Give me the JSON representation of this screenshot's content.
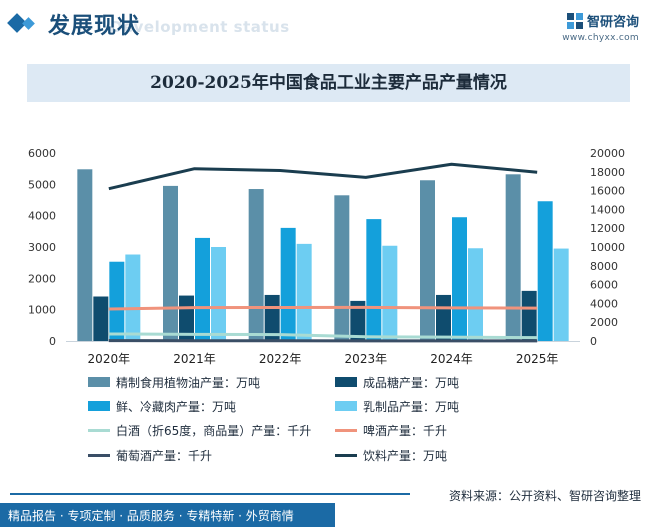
{
  "header": {
    "title": "发展现状",
    "subtitle_en": "Development status",
    "logo_name": "智研咨询",
    "logo_url": "www.chyxx.com"
  },
  "chart_data": {
    "type": "bar",
    "title": "2020-2025年中国食品工业主要产品产量情况",
    "categories": [
      "2020年",
      "2021年",
      "2022年",
      "2023年",
      "2024年",
      "2025年"
    ],
    "y_left": {
      "ylim": [
        0,
        6000
      ],
      "ticks": [
        "0",
        "1000",
        "2000",
        "3000",
        "4000",
        "5000",
        "6000"
      ]
    },
    "y_right": {
      "ylim": [
        0,
        20000
      ],
      "ticks": [
        "0",
        "2000",
        "4000",
        "6000",
        "8000",
        "10000",
        "12000",
        "14000",
        "16000",
        "18000",
        "20000"
      ]
    },
    "bar_series": [
      {
        "name": "精制食用植物油产量：万吨",
        "color": "#5b8fa8",
        "values": [
          5480,
          4950,
          4850,
          4650,
          5130,
          5320
        ]
      },
      {
        "name": "成品糖产量：万吨",
        "color": "#0f4c6e",
        "values": [
          1420,
          1450,
          1470,
          1280,
          1470,
          1600
        ]
      },
      {
        "name": "鲜、冷藏肉产量：万吨",
        "color": "#14a0db",
        "values": [
          2530,
          3290,
          3610,
          3890,
          3950,
          4460
        ]
      },
      {
        "name": "乳制品产量：万吨",
        "color": "#6dcdf2",
        "values": [
          2760,
          3000,
          3100,
          3040,
          2960,
          2950
        ]
      }
    ],
    "line_series": [
      {
        "name": "白酒（折65度，商品量）产量：千升",
        "color": "#a9dbd3",
        "axis": "right",
        "values": [
          750,
          700,
          680,
          450,
          410,
          360
        ]
      },
      {
        "name": "啤酒产量：千升",
        "color": "#f0937c",
        "axis": "right",
        "values": [
          3400,
          3550,
          3570,
          3580,
          3520,
          3500
        ]
      },
      {
        "name": "葡萄酒产量：千升",
        "color": "#3a4e66",
        "axis": "right",
        "values": [
          40,
          30,
          25,
          15,
          10,
          10
        ]
      },
      {
        "name": "饮料产量：万吨",
        "color": "#1a3d4f",
        "axis": "right",
        "values": [
          16200,
          18330,
          18140,
          17410,
          18800,
          17950
        ]
      }
    ],
    "legend_position": "bottom",
    "grid": false
  },
  "footer": {
    "source": "资料来源：公开资料、智研咨询整理",
    "tags": "精品报告 · 专项定制 · 品质服务 · 专精特新 · 外贸商情"
  }
}
